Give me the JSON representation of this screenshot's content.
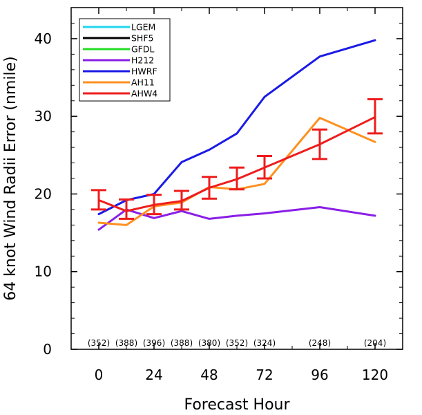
{
  "chart_data": {
    "type": "line",
    "xlabel": "Forecast Hour",
    "ylabel": "64 knot Wind Radii Error (nmile)",
    "xlim": [
      -12,
      132
    ],
    "ylim": [
      0,
      44
    ],
    "xticks": [
      0,
      24,
      48,
      72,
      96,
      120
    ],
    "xtick_labels": [
      "0",
      "24",
      "48",
      "72",
      "96",
      "120"
    ],
    "yticks": [
      0,
      10,
      20,
      30,
      40
    ],
    "ytick_labels": [
      "0",
      "10",
      "20",
      "30",
      "40"
    ],
    "legend_position": "top-left",
    "series": [
      {
        "name": "LGEM",
        "color": "#22d5ee",
        "x": [],
        "y": []
      },
      {
        "name": "SHF5",
        "color": "#000000",
        "x": [],
        "y": []
      },
      {
        "name": "GFDL",
        "color": "#22dd22",
        "x": [],
        "y": []
      },
      {
        "name": "H212",
        "color": "#8a1ee6",
        "x": [
          0,
          12,
          24,
          36,
          48,
          60,
          72,
          96,
          120
        ],
        "y": [
          15.4,
          18.0,
          16.9,
          17.8,
          16.8,
          17.2,
          17.5,
          18.3,
          17.2
        ]
      },
      {
        "name": "HWRF",
        "color": "#1a1ae6",
        "x": [
          0,
          12,
          24,
          36,
          48,
          60,
          72,
          96,
          120
        ],
        "y": [
          17.4,
          19.2,
          20.0,
          24.1,
          25.7,
          27.8,
          32.5,
          37.7,
          39.8
        ]
      },
      {
        "name": "AH11",
        "color": "#ff9020",
        "x": [
          0,
          12,
          24,
          36,
          48,
          60,
          72,
          96,
          120
        ],
        "y": [
          16.3,
          16.0,
          18.4,
          18.9,
          20.9,
          20.6,
          21.3,
          29.8,
          26.7
        ]
      },
      {
        "name": "AHW4",
        "color": "#ee1c1c",
        "x": [
          0,
          12,
          24,
          36,
          48,
          60,
          72,
          96,
          120
        ],
        "y": [
          19.2,
          17.8,
          18.6,
          19.1,
          20.8,
          21.9,
          23.4,
          26.4,
          29.9
        ],
        "err_low": [
          18.0,
          16.8,
          17.4,
          18.0,
          19.4,
          20.6,
          22.0,
          24.5,
          27.8
        ],
        "err_high": [
          20.5,
          19.3,
          19.9,
          20.4,
          22.2,
          23.4,
          24.9,
          28.3,
          32.2
        ]
      }
    ],
    "sample_counts": {
      "x": [
        0,
        12,
        24,
        36,
        48,
        60,
        72,
        96,
        120
      ],
      "labels": [
        "(352)",
        "(388)",
        "(396)",
        "(388)",
        "(380)",
        "(352)",
        "(324)",
        "(248)",
        "(204)"
      ]
    }
  }
}
